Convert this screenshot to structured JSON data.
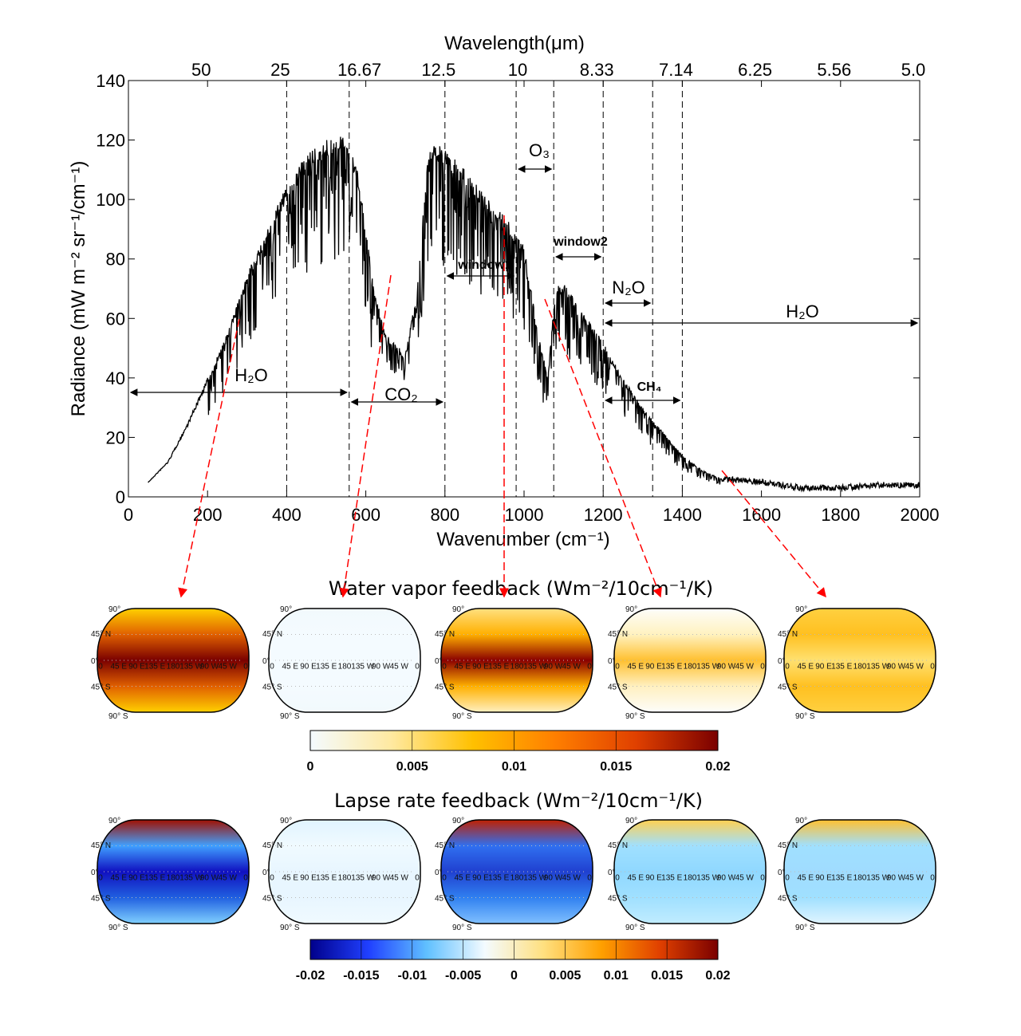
{
  "chart_data": [
    {
      "type": "line",
      "xlabel": "Wavenumber (cm⁻¹)",
      "ylabel": "Radiance (mW m⁻² sr⁻¹/cm⁻¹)",
      "top_xlabel": "Wavelength(μm)",
      "xlim": [
        0,
        2000
      ],
      "ylim": [
        0,
        140
      ],
      "xticks": [
        0,
        200,
        400,
        600,
        800,
        1000,
        1200,
        1400,
        1600,
        1800,
        2000
      ],
      "yticks": [
        0,
        20,
        40,
        60,
        80,
        100,
        120,
        140
      ],
      "top_ticks": [
        {
          "wavenumber": 200,
          "label": "50"
        },
        {
          "wavenumber": 400,
          "label": "25"
        },
        {
          "wavenumber": 600,
          "label": "16.67"
        },
        {
          "wavenumber": 800,
          "label": "12.5"
        },
        {
          "wavenumber": 1000,
          "label": "10"
        },
        {
          "wavenumber": 1200,
          "label": "8.33"
        },
        {
          "wavenumber": 1400,
          "label": "7.14"
        },
        {
          "wavenumber": 1600,
          "label": "6.25"
        },
        {
          "wavenumber": 1800,
          "label": "5.56"
        },
        {
          "wavenumber": 2000,
          "label": "5.0"
        }
      ],
      "dashed_lines": [
        400,
        558,
        800,
        980,
        1075,
        1200,
        1325,
        1400
      ],
      "spectrum_envelope": {
        "x": [
          50,
          100,
          150,
          200,
          250,
          300,
          350,
          400,
          450,
          500,
          550,
          580,
          620,
          650,
          700,
          730,
          760,
          800,
          850,
          900,
          950,
          1000,
          1030,
          1060,
          1080,
          1100,
          1150,
          1200,
          1250,
          1300,
          1350,
          1400,
          1450,
          1500,
          1600,
          1700,
          1800,
          1900,
          2000
        ],
        "y": [
          5,
          12,
          25,
          40,
          55,
          75,
          90,
          105,
          115,
          120,
          122,
          110,
          70,
          55,
          48,
          70,
          120,
          117,
          110,
          102,
          95,
          85,
          60,
          40,
          72,
          72,
          62,
          52,
          40,
          30,
          22,
          14,
          9,
          6,
          5,
          3,
          3,
          4,
          4
        ]
      },
      "color": "#000000",
      "annotations": [
        {
          "label": "H₂O",
          "from": 0,
          "to": 558
        },
        {
          "label": "CO₂",
          "from": 558,
          "to": 800
        },
        {
          "label": "window1",
          "from": 800,
          "to": 980
        },
        {
          "label": "O₃",
          "from": 980,
          "to": 1075
        },
        {
          "label": "window2",
          "from": 1075,
          "to": 1200
        },
        {
          "label": "N₂O",
          "from": 1200,
          "to": 1325
        },
        {
          "label": "CH₄",
          "from": 1200,
          "to": 1400
        },
        {
          "label": "H₂O",
          "from": 1200,
          "to": 2000
        }
      ],
      "arrow_color": "#ff0000"
    },
    {
      "type": "heatmap",
      "title": "Water vapor feedback (Wm⁻²/10cm⁻¹/K)",
      "colorbar": {
        "min": 0,
        "max": 0.02,
        "ticks": [
          "0",
          "0.005",
          "0.01",
          "0.015",
          "0.02"
        ],
        "colors": [
          "#f4fbff",
          "#ffe9a0",
          "#ffc000",
          "#ff7f00",
          "#e04000",
          "#7a0000"
        ]
      },
      "maps": [
        {
          "bands": [
            "#ffd000",
            "#e06000",
            "#7a0000",
            "#e06000",
            "#ffd000"
          ]
        },
        {
          "bands": [
            "#f2f9fc",
            "#f4fbff",
            "#f4fbff",
            "#f4fbff",
            "#f2f9fc"
          ]
        },
        {
          "bands": [
            "#ffe080",
            "#ffb000",
            "#8a0000",
            "#ffb000",
            "#fff0c0"
          ]
        },
        {
          "bands": [
            "#fdfdfa",
            "#fff2c0",
            "#ffc030",
            "#fff0c0",
            "#fdfdfa"
          ]
        },
        {
          "bands": [
            "#ffd040",
            "#ffc020",
            "#ffe070",
            "#ffc020",
            "#ffd040"
          ]
        }
      ]
    },
    {
      "type": "heatmap",
      "title": "Lapse rate feedback (Wm⁻²/10cm⁻¹/K)",
      "colorbar": {
        "min": -0.02,
        "max": 0.02,
        "ticks": [
          "-0.02",
          "-0.015",
          "-0.01",
          "-0.005",
          "0",
          "0.005",
          "0.01",
          "0.015",
          "0.02"
        ],
        "colors": [
          "#00008b",
          "#2040ff",
          "#60c0ff",
          "#f4fbff",
          "#ffe080",
          "#ffa000",
          "#e04000",
          "#7a0000"
        ]
      },
      "maps": [
        {
          "bands": [
            "#a01000",
            "#40a0ff",
            "#1010c0",
            "#2060e0",
            "#80d0ff"
          ]
        },
        {
          "bands": [
            "#e0f4ff",
            "#f0faff",
            "#e8f6ff",
            "#e8f6ff",
            "#f0faff"
          ]
        },
        {
          "bands": [
            "#c02000",
            "#3070f0",
            "#2040d0",
            "#3080f0",
            "#80c0ff"
          ]
        },
        {
          "bands": [
            "#ffd050",
            "#a0e0ff",
            "#90d8ff",
            "#a0e0ff",
            "#c0ecff"
          ]
        },
        {
          "bands": [
            "#ffc030",
            "#a0e0ff",
            "#a0dcff",
            "#a0e0ff",
            "#e0f4ff"
          ]
        }
      ]
    }
  ],
  "map_labels": {
    "lat": [
      "90°",
      "45° N",
      "0°",
      "45° S",
      "90° S"
    ],
    "lon": [
      "0",
      "45 E",
      "90 E",
      "135 E",
      "180",
      "135 W",
      "90 W",
      "45 W",
      "0"
    ]
  }
}
